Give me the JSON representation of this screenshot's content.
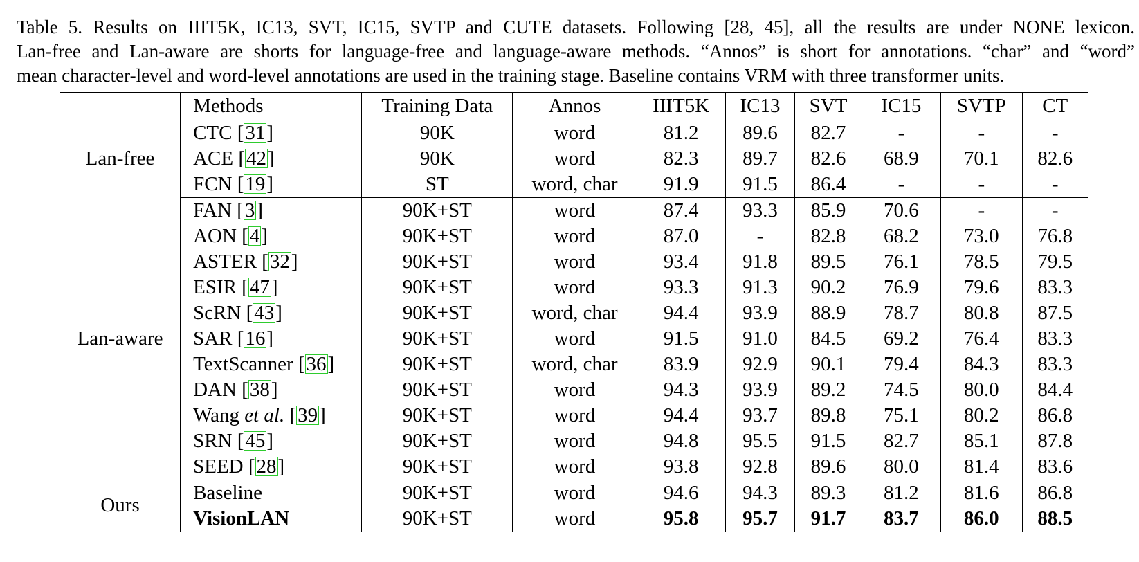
{
  "caption": {
    "line1": "Table 5. Results on IIIT5K, IC13, SVT, IC15, SVTP and CUTE datasets.  Following [28, 45], all the results are under NONE lexicon.",
    "line2": "Lan-free and Lan-aware are shorts for language-free and language-aware methods. “Annos” is short for annotations. “char” and “word”",
    "line3": "mean character-level and word-level annotations are used in the training stage. Baseline contains VRM with three transformer units."
  },
  "table": {
    "headers": [
      "",
      "Methods",
      "Training Data",
      "Annos",
      "IIIT5K",
      "IC13",
      "SVT",
      "IC15",
      "SVTP",
      "CT"
    ],
    "groups": [
      {
        "label": "Lan-free",
        "rows": [
          {
            "name": "CTC",
            "cite": "31",
            "data": "90K",
            "annos": "word",
            "vals": [
              "81.2",
              "89.6",
              "82.7",
              "-",
              "-",
              "-"
            ]
          },
          {
            "name": "ACE",
            "cite": "42",
            "data": "90K",
            "annos": "word",
            "vals": [
              "82.3",
              "89.7",
              "82.6",
              "68.9",
              "70.1",
              "82.6"
            ]
          },
          {
            "name": "FCN",
            "cite": "19",
            "data": "ST",
            "annos": "word, char",
            "vals": [
              "91.9",
              "91.5",
              "86.4",
              "-",
              "-",
              "-"
            ]
          }
        ]
      },
      {
        "label": "Lan-aware",
        "rows": [
          {
            "name": "FAN",
            "cite": "3",
            "data": "90K+ST",
            "annos": "word",
            "vals": [
              "87.4",
              "93.3",
              "85.9",
              "70.6",
              "-",
              "-"
            ]
          },
          {
            "name": "AON",
            "cite": "4",
            "data": "90K+ST",
            "annos": "word",
            "vals": [
              "87.0",
              "-",
              "82.8",
              "68.2",
              "73.0",
              "76.8"
            ]
          },
          {
            "name": "ASTER",
            "cite": "32",
            "data": "90K+ST",
            "annos": "word",
            "vals": [
              "93.4",
              "91.8",
              "89.5",
              "76.1",
              "78.5",
              "79.5"
            ]
          },
          {
            "name": "ESIR",
            "cite": "47",
            "data": "90K+ST",
            "annos": "word",
            "vals": [
              "93.3",
              "91.3",
              "90.2",
              "76.9",
              "79.6",
              "83.3"
            ]
          },
          {
            "name": "ScRN",
            "cite": "43",
            "data": "90K+ST",
            "annos": "word, char",
            "vals": [
              "94.4",
              "93.9",
              "88.9",
              "78.7",
              "80.8",
              "87.5"
            ]
          },
          {
            "name": "SAR",
            "cite": "16",
            "data": "90K+ST",
            "annos": "word",
            "vals": [
              "91.5",
              "91.0",
              "84.5",
              "69.2",
              "76.4",
              "83.3"
            ]
          },
          {
            "name": "TextScanner",
            "cite": "36",
            "data": "90K+ST",
            "annos": "word, char",
            "vals": [
              "83.9",
              "92.9",
              "90.1",
              "79.4",
              "84.3",
              "83.3"
            ]
          },
          {
            "name": "DAN",
            "cite": "38",
            "data": "90K+ST",
            "annos": "word",
            "vals": [
              "94.3",
              "93.9",
              "89.2",
              "74.5",
              "80.0",
              "84.4"
            ]
          },
          {
            "name": "Wang",
            "name_italic": "et al.",
            "cite": "39",
            "data": "90K+ST",
            "annos": "word",
            "vals": [
              "94.4",
              "93.7",
              "89.8",
              "75.1",
              "80.2",
              "86.8"
            ]
          },
          {
            "name": "SRN",
            "cite": "45",
            "data": "90K+ST",
            "annos": "word",
            "vals": [
              "94.8",
              "95.5",
              "91.5",
              "82.7",
              "85.1",
              "87.8"
            ]
          },
          {
            "name": "SEED",
            "cite": "28",
            "data": "90K+ST",
            "annos": "word",
            "vals": [
              "93.8",
              "92.8",
              "89.6",
              "80.0",
              "81.4",
              "83.6"
            ]
          }
        ]
      },
      {
        "label": "Ours",
        "rows": [
          {
            "name": "Baseline",
            "cite": "",
            "data": "90K+ST",
            "annos": "word",
            "vals": [
              "94.6",
              "94.3",
              "89.3",
              "81.2",
              "81.6",
              "86.8"
            ]
          },
          {
            "name": "VisionLAN",
            "cite": "",
            "bold": true,
            "data": "90K+ST",
            "annos": "word",
            "vals": [
              "95.8",
              "95.7",
              "91.7",
              "83.7",
              "86.0",
              "88.5"
            ]
          }
        ]
      }
    ]
  }
}
